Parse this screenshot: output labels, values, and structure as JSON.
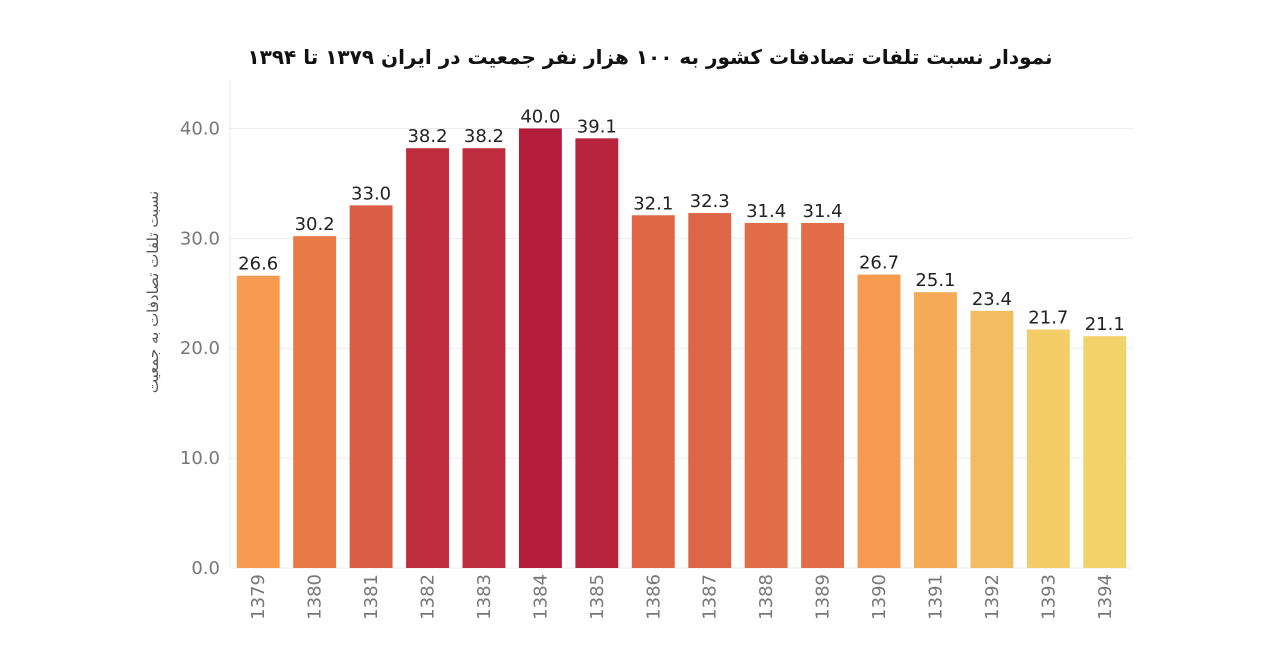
{
  "chart_data": {
    "type": "bar",
    "title": "نمودار نسبت تلفات تصادفات کشور به ۱۰۰ هزار نفر جمعیت در ایران ۱۳۷۹ تا ۱۳۹۴",
    "xlabel": "",
    "ylabel": "نسبت تلفات تصادفات به جمعیت",
    "categories": [
      "1379",
      "1380",
      "1381",
      "1382",
      "1383",
      "1384",
      "1385",
      "1386",
      "1387",
      "1388",
      "1389",
      "1390",
      "1391",
      "1392",
      "1393",
      "1394"
    ],
    "values": [
      26.6,
      30.2,
      33.0,
      38.2,
      38.2,
      40.0,
      39.1,
      32.1,
      32.3,
      31.4,
      31.4,
      26.7,
      25.1,
      23.4,
      21.7,
      21.1
    ],
    "data_labels": [
      "26.6",
      "30.2",
      "33.0",
      "38.2",
      "38.2",
      "40.0",
      "39.1",
      "32.1",
      "32.3",
      "31.4",
      "31.4",
      "26.7",
      "25.1",
      "23.4",
      "21.7",
      "21.1"
    ],
    "yticks": [
      0,
      10,
      20,
      30,
      40
    ],
    "ytick_labels": [
      "0.0",
      "10.0",
      "20.0",
      "30.0",
      "40.0"
    ],
    "ylim": [
      0,
      44.5
    ],
    "grid": true,
    "legend": "none",
    "color_scale": {
      "low": "#f2d36b",
      "mid": "#f7904a",
      "high": "#b41c3c"
    }
  }
}
